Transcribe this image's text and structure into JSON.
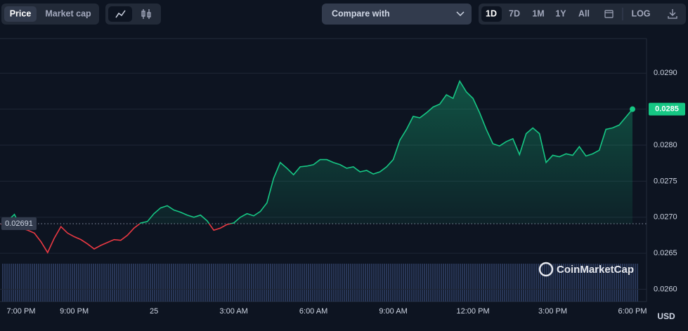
{
  "toolbar": {
    "price": "Price",
    "market_cap": "Market cap",
    "compare": "Compare with",
    "ranges": [
      "1D",
      "7D",
      "1M",
      "1Y",
      "All"
    ],
    "log": "LOG"
  },
  "watermark": "CoinMarketCap",
  "chart_data": {
    "type": "line",
    "unit": "USD",
    "color_up": "#16c784",
    "color_down": "#ea3943",
    "reference_value": 0.02691,
    "categories": [
      null,
      null,
      null,
      "7:00 PM",
      null,
      null,
      null,
      null,
      null,
      null,
      null,
      "9:00 PM",
      null,
      null,
      null,
      null,
      null,
      null,
      null,
      null,
      null,
      null,
      null,
      "25",
      null,
      null,
      null,
      null,
      null,
      null,
      null,
      null,
      null,
      null,
      null,
      "3:00 AM",
      null,
      null,
      null,
      null,
      null,
      null,
      null,
      null,
      null,
      null,
      null,
      "6:00 AM",
      null,
      null,
      null,
      null,
      null,
      null,
      null,
      null,
      null,
      null,
      null,
      "9:00 AM",
      null,
      null,
      null,
      null,
      null,
      null,
      null,
      null,
      null,
      null,
      null,
      "12:00 PM",
      null,
      null,
      null,
      null,
      null,
      null,
      null,
      null,
      null,
      null,
      null,
      "3:00 PM",
      null,
      null,
      null,
      null,
      null,
      null,
      null,
      null,
      null,
      null,
      null,
      "6:00 PM"
    ],
    "values": [
      0.0269,
      0.02695,
      0.02704,
      0.02685,
      0.02682,
      0.02678,
      0.02666,
      0.02651,
      0.02671,
      0.02687,
      0.02678,
      0.02673,
      0.02669,
      0.02663,
      0.02656,
      0.02661,
      0.02665,
      0.02669,
      0.02668,
      0.02675,
      0.02685,
      0.02692,
      0.02694,
      0.02705,
      0.02713,
      0.02716,
      0.0271,
      0.02707,
      0.02703,
      0.027,
      0.02703,
      0.02695,
      0.02682,
      0.02685,
      0.0269,
      0.02692,
      0.027,
      0.02705,
      0.02702,
      0.02708,
      0.0272,
      0.02754,
      0.02776,
      0.02768,
      0.02759,
      0.0277,
      0.02771,
      0.02773,
      0.0278,
      0.0278,
      0.02776,
      0.02773,
      0.02768,
      0.0277,
      0.02763,
      0.02765,
      0.0276,
      0.02763,
      0.0277,
      0.0278,
      0.02807,
      0.02822,
      0.0284,
      0.02838,
      0.02845,
      0.02853,
      0.02857,
      0.0287,
      0.02865,
      0.02889,
      0.02874,
      0.02865,
      0.02845,
      0.02822,
      0.02802,
      0.02799,
      0.02805,
      0.02809,
      0.02787,
      0.02816,
      0.02824,
      0.02816,
      0.02776,
      0.02786,
      0.02784,
      0.02788,
      0.02786,
      0.02798,
      0.02785,
      0.02788,
      0.02793,
      0.02822,
      0.02824,
      0.02828,
      0.02839,
      0.0285
    ],
    "ylim": [
      0.02583,
      0.02948
    ],
    "yticks": [
      {
        "value": 0.026,
        "label": "0.0260"
      },
      0.0265,
      {
        "value": 0.027,
        "label": "0.0270"
      },
      0.0275,
      {
        "value": 0.028,
        "label": "0.0280"
      },
      0.0285,
      {
        "value": 0.029,
        "label": "0.0290"
      }
    ],
    "grid": true
  }
}
